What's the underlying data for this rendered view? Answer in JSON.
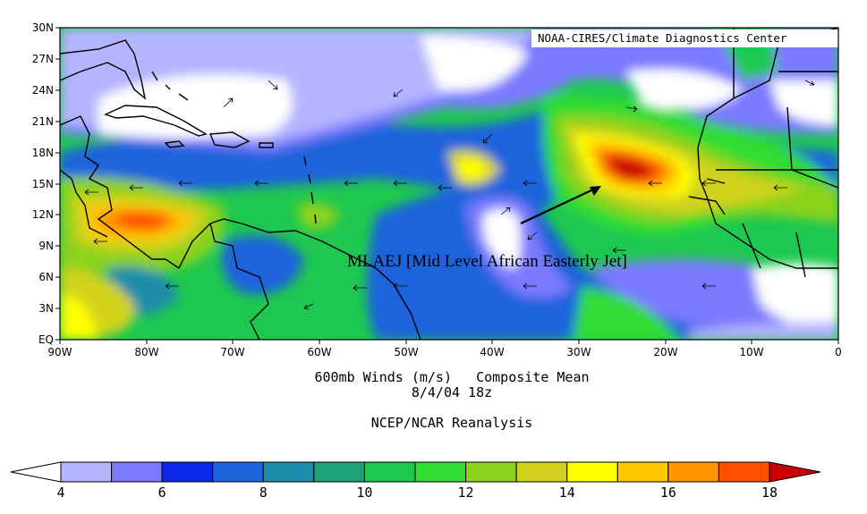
{
  "credit": "NOAA-CIRES/Climate Diagnostics Center",
  "caption": {
    "line1": "600mb Winds (m/s)   Composite Mean",
    "line2": "8/4/04 18z",
    "line3": "NCEP/NCAR Reanalysis"
  },
  "annotation": "MLAEJ [Mid Level African Easterly Jet]",
  "axes": {
    "lat_labels": [
      "30N",
      "27N",
      "24N",
      "21N",
      "18N",
      "15N",
      "12N",
      "9N",
      "6N",
      "3N",
      "EQ"
    ],
    "lon_labels": [
      "90W",
      "80W",
      "70W",
      "60W",
      "50W",
      "40W",
      "30W",
      "20W",
      "10W",
      "0"
    ]
  },
  "colorbar": {
    "labels": [
      "4",
      "6",
      "8",
      "10",
      "12",
      "14",
      "16",
      "18"
    ],
    "colors": [
      "#ffffff",
      "#b4b4ff",
      "#7a7aff",
      "#0a28e6",
      "#1f64dc",
      "#1e8caa",
      "#1ea078",
      "#1ec850",
      "#32dc32",
      "#8cd21e",
      "#d2d21e",
      "#ffff00",
      "#ffc800",
      "#ff9600",
      "#ff5000",
      "#c80000"
    ]
  },
  "map_data": {
    "wind_maximum": "Mid Level African Easterly Jet"
  }
}
